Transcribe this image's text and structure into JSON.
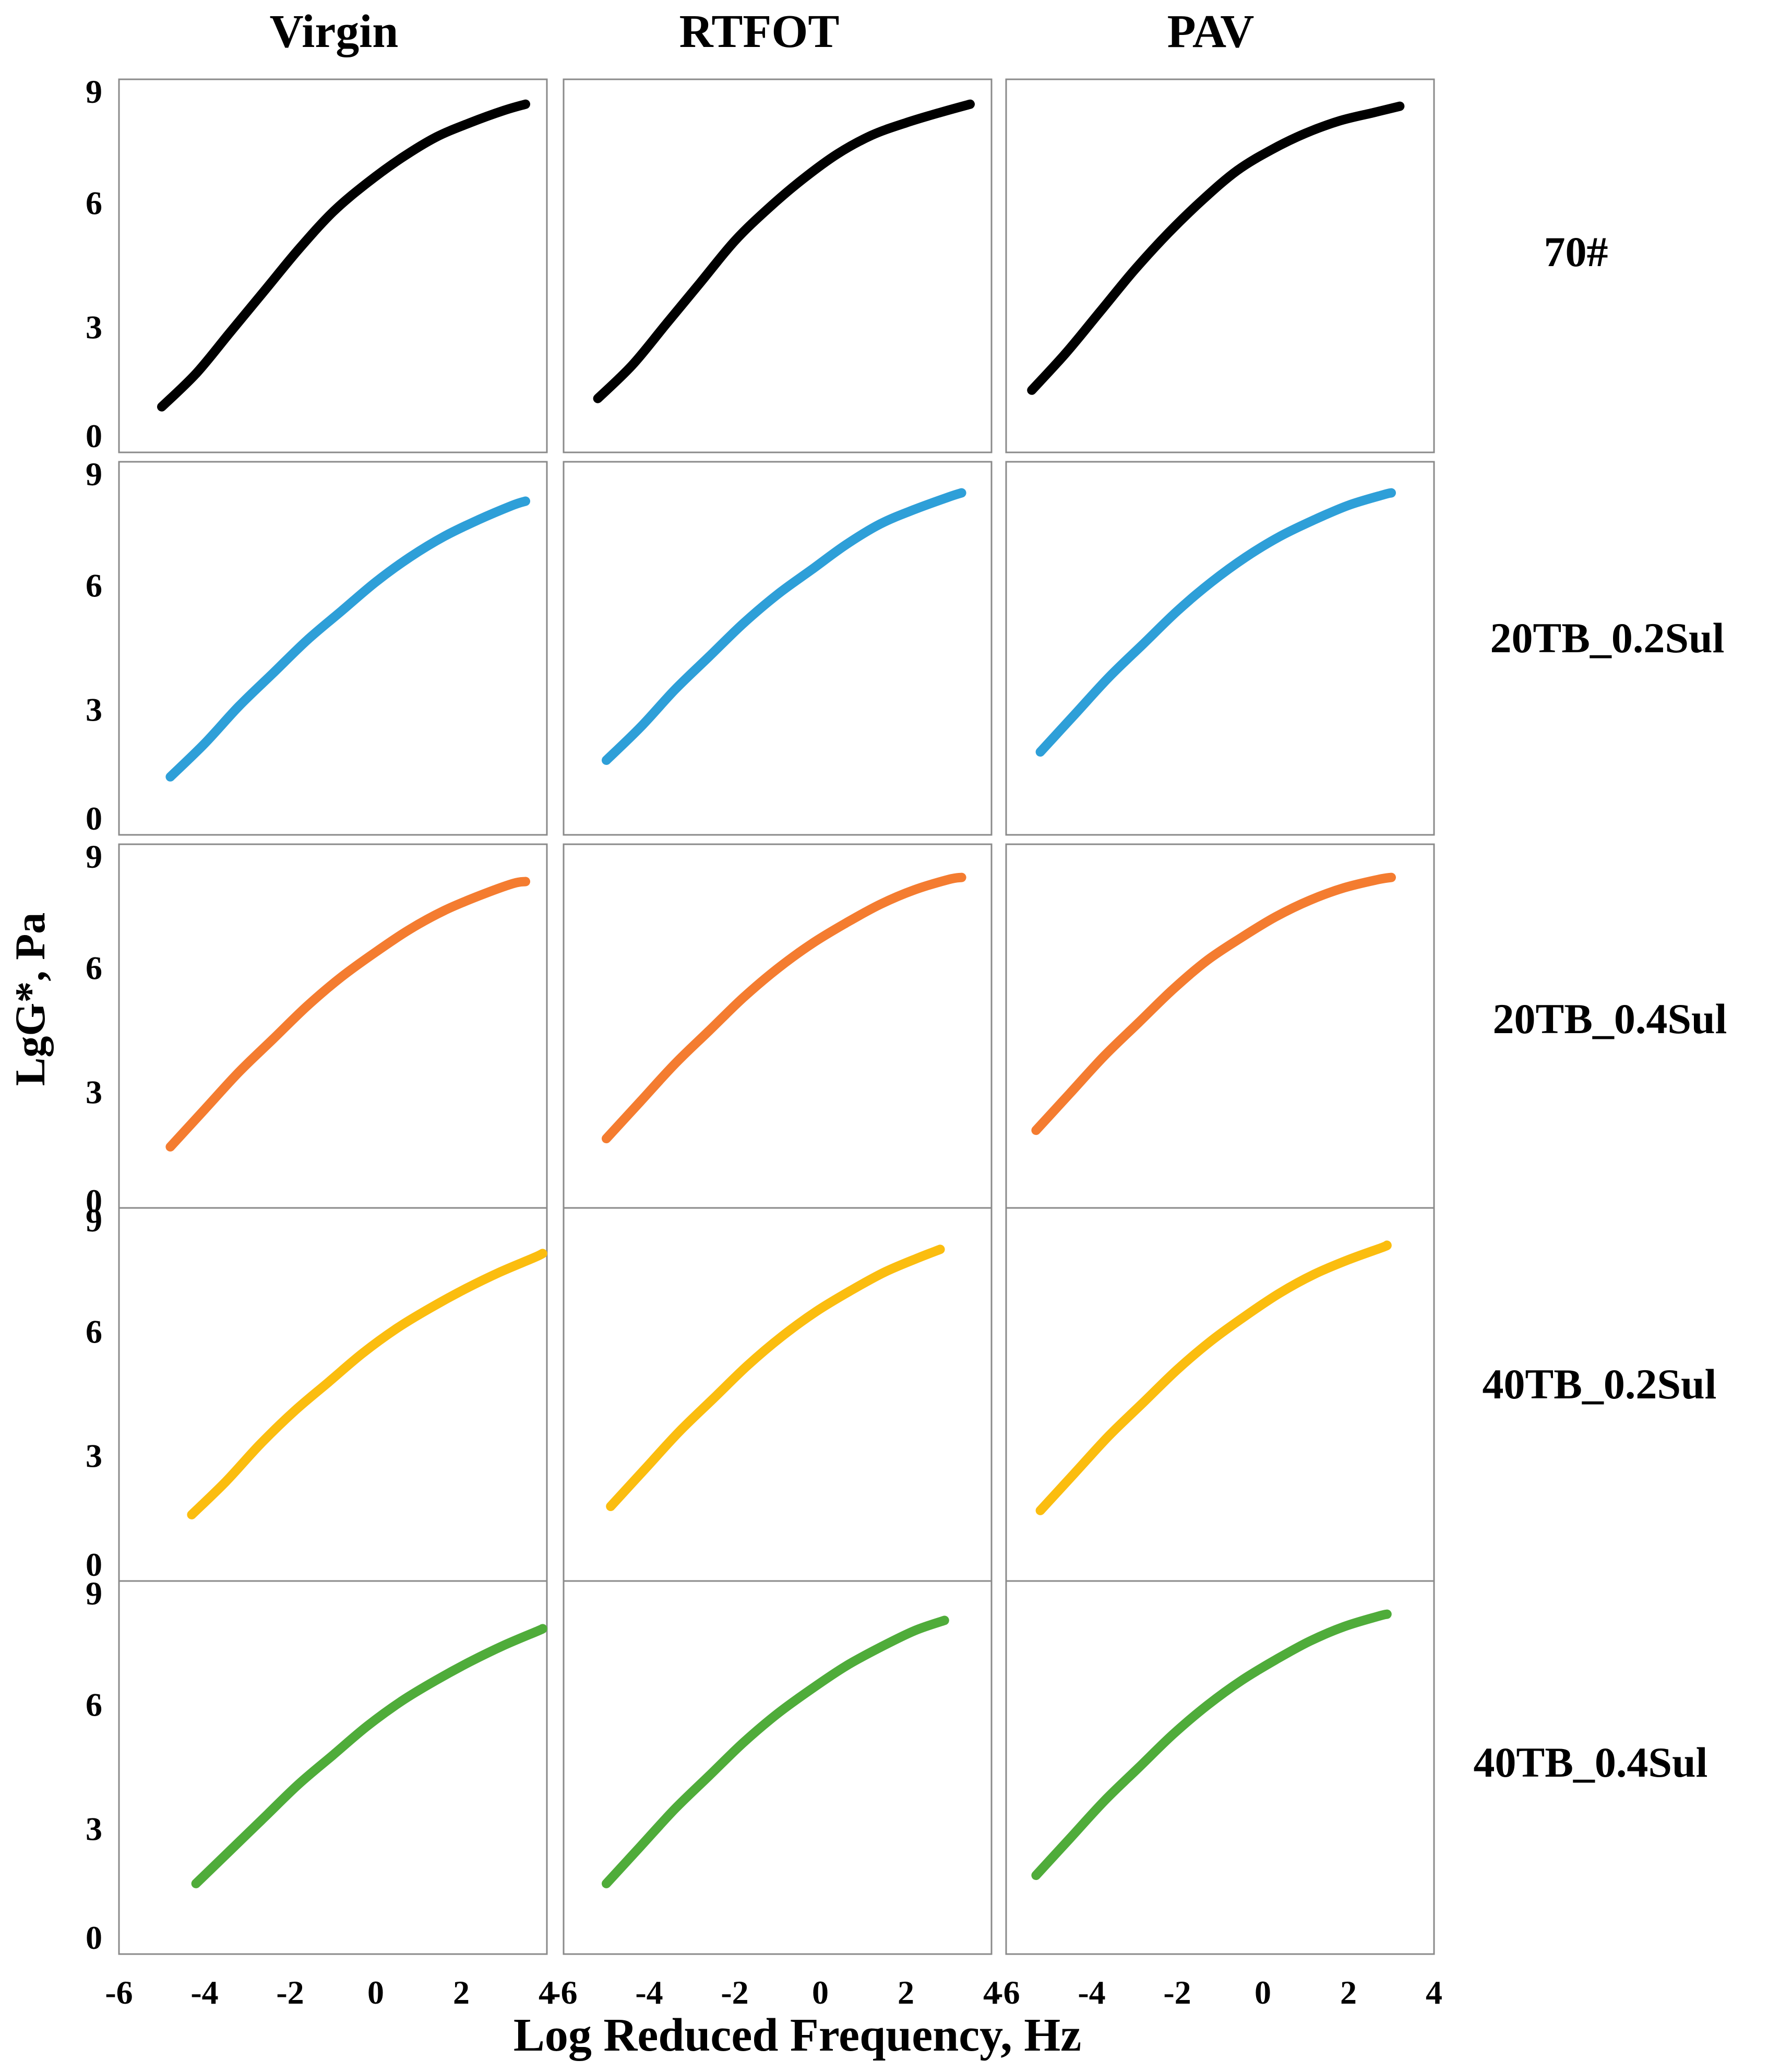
{
  "figure": {
    "y_axis_label": "LgG*, Pa",
    "x_axis_label": "Log Reduced Frequency, Hz",
    "column_titles": [
      "Virgin",
      "RTFOT",
      "PAV"
    ],
    "row_labels": [
      "70#",
      "20TB_0.2Sul",
      "20TB_0.4Sul",
      "40TB_0.2Sul",
      "40TB_0.4Sul"
    ],
    "y_ticks": [
      "0",
      "3",
      "6",
      "9"
    ],
    "x_ticks": [
      [
        "-6",
        "-4",
        "-2",
        "0",
        "2",
        "4"
      ],
      [
        "-6",
        "-4",
        "-2",
        "0",
        "2",
        "4"
      ],
      [
        "-6",
        "-4",
        "-2",
        "0",
        "2",
        "4"
      ]
    ],
    "row_colors": [
      "#000000",
      "#2e9fd8",
      "#f47c30",
      "#fbbd0f",
      "#4fac3a"
    ]
  },
  "chart_data": [
    {
      "type": "line",
      "row": "70#",
      "column": "Virgin",
      "xlim": [
        -6,
        4
      ],
      "ylim": [
        0,
        9
      ],
      "x": [
        -5.0,
        -4.2,
        -3.4,
        -2.6,
        -1.8,
        -1.0,
        -0.2,
        0.6,
        1.4,
        2.2,
        3.0,
        3.5
      ],
      "y": [
        1.1,
        1.9,
        2.9,
        3.9,
        4.9,
        5.8,
        6.5,
        7.1,
        7.6,
        7.95,
        8.25,
        8.4
      ]
    },
    {
      "type": "line",
      "row": "70#",
      "column": "RTFOT",
      "xlim": [
        -6,
        4
      ],
      "ylim": [
        0,
        9
      ],
      "x": [
        -5.2,
        -4.4,
        -3.6,
        -2.8,
        -2.0,
        -1.2,
        -0.4,
        0.4,
        1.2,
        2.0,
        2.8,
        3.5
      ],
      "y": [
        1.3,
        2.1,
        3.1,
        4.1,
        5.1,
        5.9,
        6.6,
        7.2,
        7.65,
        7.95,
        8.2,
        8.4
      ]
    },
    {
      "type": "line",
      "row": "70#",
      "column": "PAV",
      "xlim": [
        -6,
        4
      ],
      "ylim": [
        0,
        9
      ],
      "x": [
        -5.4,
        -4.6,
        -3.8,
        -3.0,
        -2.2,
        -1.4,
        -0.6,
        0.2,
        1.0,
        1.8,
        2.6,
        3.2
      ],
      "y": [
        1.5,
        2.4,
        3.4,
        4.4,
        5.3,
        6.1,
        6.8,
        7.3,
        7.7,
        8.0,
        8.2,
        8.35
      ]
    },
    {
      "type": "line",
      "row": "20TB_0.2Sul",
      "column": "Virgin",
      "xlim": [
        -6,
        4
      ],
      "ylim": [
        0,
        9
      ],
      "x": [
        -4.8,
        -4.0,
        -3.2,
        -2.4,
        -1.6,
        -0.8,
        0.0,
        0.8,
        1.6,
        2.4,
        3.2,
        3.5
      ],
      "y": [
        1.4,
        2.2,
        3.1,
        3.9,
        4.7,
        5.4,
        6.1,
        6.7,
        7.2,
        7.6,
        7.95,
        8.05
      ]
    },
    {
      "type": "line",
      "row": "20TB_0.2Sul",
      "column": "RTFOT",
      "xlim": [
        -6,
        4
      ],
      "ylim": [
        0,
        9
      ],
      "x": [
        -5.0,
        -4.2,
        -3.4,
        -2.6,
        -1.8,
        -1.0,
        -0.2,
        0.6,
        1.4,
        2.2,
        3.0,
        3.3
      ],
      "y": [
        1.8,
        2.6,
        3.5,
        4.3,
        5.1,
        5.8,
        6.4,
        7.0,
        7.5,
        7.85,
        8.15,
        8.25
      ]
    },
    {
      "type": "line",
      "row": "20TB_0.2Sul",
      "column": "PAV",
      "xlim": [
        -6,
        4
      ],
      "ylim": [
        0,
        9
      ],
      "x": [
        -5.2,
        -4.4,
        -3.6,
        -2.8,
        -2.0,
        -1.2,
        -0.4,
        0.4,
        1.2,
        2.0,
        2.8,
        3.0
      ],
      "y": [
        2.0,
        2.9,
        3.8,
        4.6,
        5.4,
        6.1,
        6.7,
        7.2,
        7.6,
        7.95,
        8.2,
        8.25
      ]
    },
    {
      "type": "line",
      "row": "20TB_0.4Sul",
      "column": "Virgin",
      "xlim": [
        -6,
        4
      ],
      "ylim": [
        0,
        9
      ],
      "x": [
        -4.8,
        -4.0,
        -3.2,
        -2.4,
        -1.6,
        -0.8,
        0.0,
        0.8,
        1.6,
        2.4,
        3.2,
        3.5
      ],
      "y": [
        1.7,
        2.6,
        3.5,
        4.3,
        5.1,
        5.8,
        6.4,
        6.95,
        7.4,
        7.75,
        8.05,
        8.1
      ]
    },
    {
      "type": "line",
      "row": "20TB_0.4Sul",
      "column": "RTFOT",
      "xlim": [
        -6,
        4
      ],
      "ylim": [
        0,
        9
      ],
      "x": [
        -5.0,
        -4.2,
        -3.4,
        -2.6,
        -1.8,
        -1.0,
        -0.2,
        0.6,
        1.4,
        2.2,
        3.0,
        3.3
      ],
      "y": [
        1.9,
        2.8,
        3.7,
        4.5,
        5.3,
        6.0,
        6.6,
        7.1,
        7.55,
        7.9,
        8.15,
        8.2
      ]
    },
    {
      "type": "line",
      "row": "20TB_0.4Sul",
      "column": "PAV",
      "xlim": [
        -6,
        4
      ],
      "ylim": [
        0,
        9
      ],
      "x": [
        -5.3,
        -4.5,
        -3.7,
        -2.9,
        -2.1,
        -1.3,
        -0.5,
        0.3,
        1.1,
        1.9,
        2.7,
        3.0
      ],
      "y": [
        2.1,
        3.0,
        3.9,
        4.7,
        5.5,
        6.2,
        6.75,
        7.25,
        7.65,
        7.95,
        8.15,
        8.2
      ]
    },
    {
      "type": "line",
      "row": "40TB_0.2Sul",
      "column": "Virgin",
      "xlim": [
        -6,
        4
      ],
      "ylim": [
        0,
        9
      ],
      "x": [
        -4.3,
        -3.5,
        -2.7,
        -1.9,
        -1.1,
        -0.3,
        0.5,
        1.3,
        2.1,
        2.9,
        3.7,
        3.9
      ],
      "y": [
        1.6,
        2.4,
        3.3,
        4.1,
        4.8,
        5.5,
        6.1,
        6.6,
        7.05,
        7.45,
        7.8,
        7.9
      ]
    },
    {
      "type": "line",
      "row": "40TB_0.2Sul",
      "column": "RTFOT",
      "xlim": [
        -6,
        4
      ],
      "ylim": [
        0,
        9
      ],
      "x": [
        -4.9,
        -4.1,
        -3.3,
        -2.5,
        -1.7,
        -0.9,
        -0.1,
        0.7,
        1.5,
        2.3,
        2.8
      ],
      "y": [
        1.8,
        2.7,
        3.6,
        4.4,
        5.2,
        5.9,
        6.5,
        7.0,
        7.45,
        7.8,
        8.0
      ]
    },
    {
      "type": "line",
      "row": "40TB_0.2Sul",
      "column": "PAV",
      "xlim": [
        -6,
        4
      ],
      "ylim": [
        0,
        9
      ],
      "x": [
        -5.2,
        -4.4,
        -3.6,
        -2.8,
        -2.0,
        -1.2,
        -0.4,
        0.4,
        1.2,
        2.0,
        2.8,
        2.9
      ],
      "y": [
        1.7,
        2.6,
        3.5,
        4.3,
        5.1,
        5.8,
        6.4,
        6.95,
        7.4,
        7.75,
        8.05,
        8.1
      ]
    },
    {
      "type": "line",
      "row": "40TB_0.4Sul",
      "column": "Virgin",
      "xlim": [
        -6,
        4
      ],
      "ylim": [
        0,
        9
      ],
      "x": [
        -4.2,
        -3.4,
        -2.6,
        -1.8,
        -1.0,
        -0.2,
        0.6,
        1.4,
        2.2,
        3.0,
        3.8,
        3.9
      ],
      "y": [
        1.7,
        2.5,
        3.3,
        4.1,
        4.8,
        5.5,
        6.1,
        6.6,
        7.05,
        7.45,
        7.8,
        7.85
      ]
    },
    {
      "type": "line",
      "row": "40TB_0.4Sul",
      "column": "RTFOT",
      "xlim": [
        -6,
        4
      ],
      "ylim": [
        0,
        9
      ],
      "x": [
        -5.0,
        -4.2,
        -3.4,
        -2.6,
        -1.8,
        -1.0,
        -0.2,
        0.6,
        1.4,
        2.2,
        2.9
      ],
      "y": [
        1.7,
        2.6,
        3.5,
        4.3,
        5.1,
        5.8,
        6.4,
        6.95,
        7.4,
        7.8,
        8.05
      ]
    },
    {
      "type": "line",
      "row": "40TB_0.4Sul",
      "column": "PAV",
      "xlim": [
        -6,
        4
      ],
      "ylim": [
        0,
        9
      ],
      "x": [
        -5.3,
        -4.5,
        -3.7,
        -2.9,
        -2.1,
        -1.3,
        -0.5,
        0.3,
        1.1,
        1.9,
        2.7,
        2.9
      ],
      "y": [
        1.9,
        2.8,
        3.7,
        4.5,
        5.3,
        6.0,
        6.6,
        7.1,
        7.55,
        7.9,
        8.15,
        8.2
      ]
    }
  ]
}
